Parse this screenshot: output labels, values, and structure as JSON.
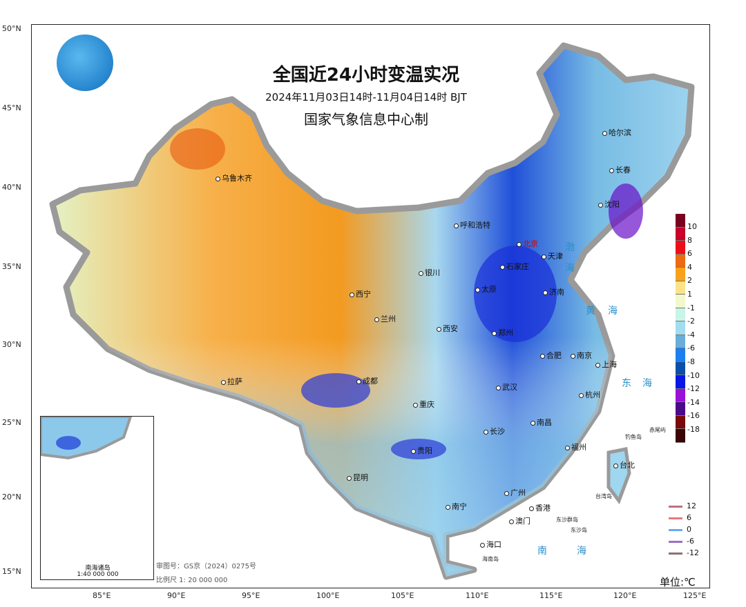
{
  "title": "全国近24小时变温实况",
  "subtitle": "2024年11月03日14时-11月04日14时  BJT",
  "organization": "国家气象信息中心制",
  "logo": "cma-logo-icon",
  "lat_ticks": [
    "50°N",
    "45°N",
    "40°N",
    "35°N",
    "30°N",
    "25°N",
    "20°N",
    "15°N"
  ],
  "lon_ticks": [
    "85°E",
    "90°E",
    "95°E",
    "100°E",
    "105°E",
    "110°E",
    "115°E",
    "120°E",
    "125°E"
  ],
  "cities": [
    {
      "name": "乌鲁木齐"
    },
    {
      "name": "哈尔滨"
    },
    {
      "name": "长春"
    },
    {
      "name": "沈阳"
    },
    {
      "name": "呼和浩特"
    },
    {
      "name": "北京",
      "capital": true
    },
    {
      "name": "天津"
    },
    {
      "name": "石家庄"
    },
    {
      "name": "太原"
    },
    {
      "name": "济南"
    },
    {
      "name": "银川"
    },
    {
      "name": "西宁"
    },
    {
      "name": "兰州"
    },
    {
      "name": "郑州"
    },
    {
      "name": "西安"
    },
    {
      "name": "合肥"
    },
    {
      "name": "南京"
    },
    {
      "name": "上海"
    },
    {
      "name": "杭州"
    },
    {
      "name": "成都"
    },
    {
      "name": "重庆"
    },
    {
      "name": "武汉"
    },
    {
      "name": "拉萨"
    },
    {
      "name": "长沙"
    },
    {
      "name": "南昌"
    },
    {
      "name": "贵阳"
    },
    {
      "name": "福州"
    },
    {
      "name": "台北"
    },
    {
      "name": "昆明"
    },
    {
      "name": "南宁"
    },
    {
      "name": "广州"
    },
    {
      "name": "香港"
    },
    {
      "name": "澳门"
    },
    {
      "name": "海口"
    }
  ],
  "seas": [
    "渤",
    "海",
    "黄",
    "海",
    "东",
    "海",
    "南",
    "海"
  ],
  "islands": [
    "钓鱼岛",
    "赤尾屿",
    "台湾岛",
    "东沙群岛",
    "东沙岛",
    "海南岛"
  ],
  "legend": {
    "colors": [
      "#7a0020",
      "#c8002a",
      "#ec0f1a",
      "#ec6a10",
      "#f7a21a",
      "#fce38a",
      "#f2f8cc",
      "#c9f5e6",
      "#a2dcf0",
      "#6aaed8",
      "#1b7ff0",
      "#0b4fa8",
      "#0a16e6",
      "#9a10d8",
      "#4a0a8a",
      "#7a0a0a",
      "#3a0505"
    ],
    "labels": [
      "10",
      "8",
      "6",
      "4",
      "2",
      "1",
      "-1",
      "-2",
      "-4",
      "-6",
      "-8",
      "-10",
      "-12",
      "-14",
      "-16",
      "-18"
    ]
  },
  "contour_legend": [
    {
      "label": "12",
      "color": "#c07080"
    },
    {
      "label": "6",
      "color": "#e87a7a"
    },
    {
      "label": "0",
      "color": "#6aa8f0"
    },
    {
      "label": "-6",
      "color": "#9a70c0"
    },
    {
      "label": "-12",
      "color": "#907070"
    }
  ],
  "inset": {
    "title": "南海诸岛",
    "scale": "1:40 000 000"
  },
  "notes": {
    "approval": "审图号：GS京（2024）0275号",
    "scale": "比例尺 1: 20 000 000"
  },
  "unit": "单位:℃"
}
